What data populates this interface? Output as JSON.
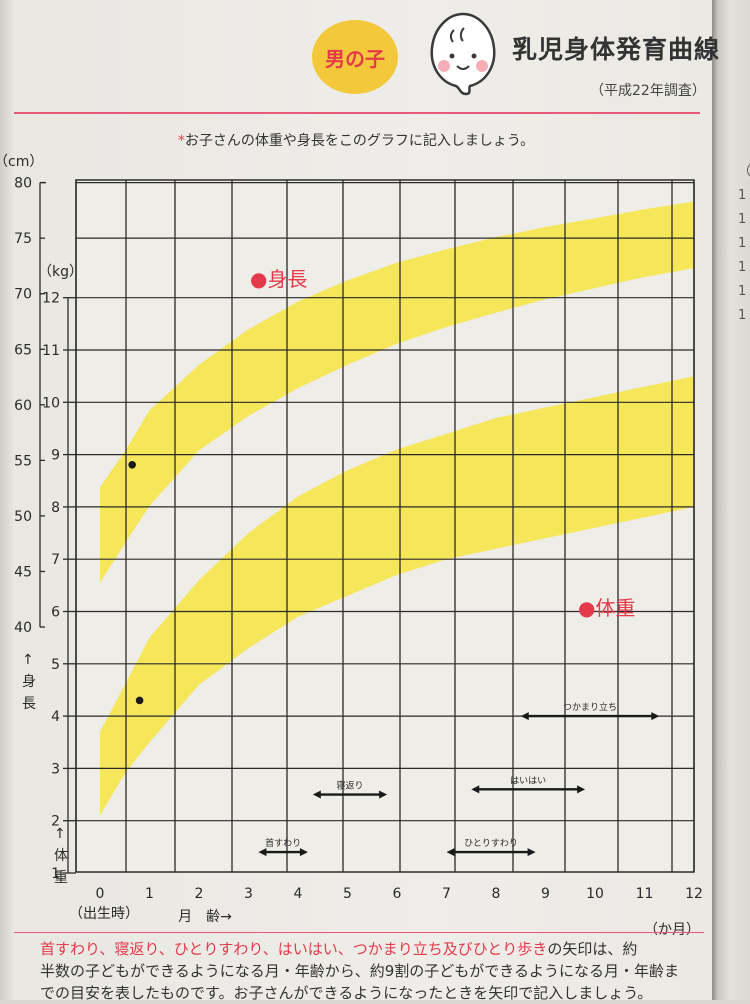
{
  "header": {
    "badge": "男の子",
    "title": "乳児身体発育曲線",
    "subtitle": "（平成22年調査）",
    "instruction_mark": "*",
    "instruction": "お子さんの体重や身長をこのグラフに記入しましょう。"
  },
  "colors": {
    "band": "#f5e44a",
    "accent": "#e43a49",
    "badge_bg": "#f3c83a",
    "grid": "#2b2b2b",
    "divider": "#e65a78"
  },
  "chart_data": {
    "type": "line",
    "x": {
      "range": [
        0,
        12
      ],
      "ticks": [
        0,
        1,
        2,
        3,
        4,
        5,
        6,
        7,
        8,
        9,
        10,
        11,
        12
      ],
      "tick_labels": [
        "0",
        "1",
        "2",
        "3",
        "4",
        "5",
        "6",
        "7",
        "8",
        "9",
        "10",
        "11",
        "12"
      ],
      "start_label": "（出生時）",
      "label": "月　齢→",
      "unit": "（か月）"
    },
    "y_height": {
      "unit": "（cm）",
      "range": [
        40,
        80
      ],
      "ticks": [
        40,
        45,
        50,
        55,
        60,
        65,
        70,
        75,
        80
      ],
      "label_chars": [
        "↑",
        "身",
        "長"
      ]
    },
    "y_weight": {
      "unit": "（kg）",
      "range": [
        1,
        12
      ],
      "ticks": [
        1,
        2,
        3,
        4,
        5,
        6,
        7,
        8,
        9,
        10,
        11,
        12
      ],
      "label_chars": [
        "↑",
        "体",
        "重"
      ]
    },
    "grid": true,
    "series": [
      {
        "name": "●身長",
        "axis": "height",
        "x": [
          0,
          0.5,
          1,
          2,
          3,
          4,
          5,
          6,
          7,
          8,
          9,
          10,
          11,
          12
        ],
        "lower": [
          44.0,
          47.5,
          50.9,
          55.9,
          59.0,
          61.5,
          63.6,
          65.5,
          67.0,
          68.3,
          69.5,
          70.5,
          71.5,
          72.3
        ],
        "upper": [
          52.6,
          55.8,
          59.5,
          63.6,
          66.8,
          69.3,
          71.2,
          72.8,
          74.0,
          75.1,
          76.0,
          76.8,
          77.6,
          78.3
        ]
      },
      {
        "name": "●体重",
        "axis": "weight",
        "x": [
          0,
          0.5,
          1,
          2,
          3,
          4,
          5,
          6,
          7,
          8,
          9,
          10,
          11,
          12
        ],
        "lower": [
          2.1,
          2.9,
          3.5,
          4.6,
          5.3,
          5.9,
          6.3,
          6.7,
          7.0,
          7.2,
          7.4,
          7.6,
          7.8,
          8.0
        ],
        "upper": [
          3.7,
          4.6,
          5.5,
          6.6,
          7.5,
          8.2,
          8.7,
          9.1,
          9.4,
          9.7,
          9.9,
          10.1,
          10.3,
          10.5
        ]
      }
    ],
    "plotted_points": [
      {
        "axis": "height",
        "x": 0.65,
        "y": 54.6
      },
      {
        "axis": "weight",
        "x": 0.8,
        "y": 4.3
      }
    ],
    "milestones": [
      {
        "label": "首すわり",
        "from": 3.2,
        "to": 4.2,
        "y": 1.4
      },
      {
        "label": "寝返り",
        "from": 4.3,
        "to": 5.8,
        "y": 2.5
      },
      {
        "label": "ひとりすわり",
        "from": 7.0,
        "to": 8.8,
        "y": 1.4
      },
      {
        "label": "はいはい",
        "from": 7.5,
        "to": 9.8,
        "y": 2.6
      },
      {
        "label": "つかまり立ち",
        "from": 8.5,
        "to": 11.3,
        "y": 4.0
      }
    ]
  },
  "footer": {
    "line1_highlight": "首すわり、寝返り、ひとりすわり、はいはい、つかまり立ち及びひとり歩き",
    "line1_rest": "の矢印は、約",
    "line2": "半数の子どもができるようになる月・年齢から、約9割の子どもができるようになる月・年齢ま",
    "line3": "での目安を表したものです。お子さんができるようになったときを矢印で記入しましょう。"
  },
  "gutter": {
    "text": "（c\n1\n1\n1\n1\n1\n1"
  }
}
